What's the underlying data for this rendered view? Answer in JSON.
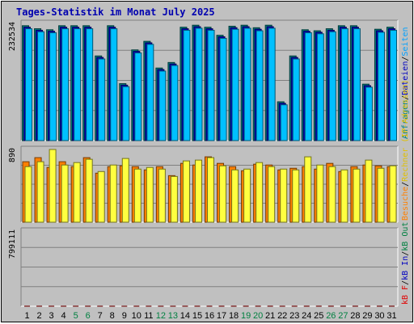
{
  "title": "Tages-Statistik im Monat July 2025",
  "chart_data": {
    "type": "bar",
    "title": "Tages-Statistik im Monat July 2025",
    "categories": [
      "1",
      "2",
      "3",
      "4",
      "5",
      "6",
      "7",
      "8",
      "9",
      "10",
      "11",
      "12",
      "13",
      "14",
      "15",
      "16",
      "17",
      "18",
      "19",
      "20",
      "21",
      "22",
      "23",
      "24",
      "25",
      "26",
      "27",
      "28",
      "29",
      "30",
      "31"
    ],
    "weekend_days": [
      "5",
      "6",
      "12",
      "13",
      "19",
      "20",
      "26",
      "27"
    ],
    "panels": [
      {
        "name": "hits",
        "ymax_label": "232534",
        "ymax": 232534,
        "legend": [
          {
            "text": "Anfragen",
            "color": "#008080"
          },
          {
            "text": "/",
            "color": "#000000"
          },
          {
            "text": "Dateien",
            "color": "#0000c0"
          },
          {
            "text": "/",
            "color": "#000000"
          },
          {
            "text": "Seiten",
            "color": "#00a0ff"
          }
        ],
        "series": [
          {
            "name": "Anfragen",
            "color": "#008080",
            "values": [
              228000,
              222000,
              220000,
              228000,
              228000,
              228000,
              168000,
              228000,
              113000,
              180000,
              197000,
              144000,
              155000,
              225000,
              229000,
              225000,
              209000,
              227000,
              229000,
              224000,
              229000,
              77000,
              168000,
              220000,
              218000,
              222000,
              228000,
              228000,
              112000,
              221000,
              225000
            ]
          },
          {
            "name": "Dateien",
            "color": "#0000c0",
            "values": [
              225000,
              219000,
              217000,
              225000,
              225000,
              225000,
              165000,
              225000,
              110000,
              177000,
              194000,
              141000,
              152000,
              222000,
              226000,
              222000,
              206000,
              224000,
              226000,
              221000,
              226000,
              74000,
              165000,
              217000,
              215000,
              219000,
              225000,
              225000,
              109000,
              218000,
              222000
            ]
          },
          {
            "name": "Seiten",
            "color": "#00c0ff",
            "values": [
              222000,
              216000,
              214000,
              222000,
              222000,
              222000,
              162000,
              222000,
              107000,
              174000,
              191000,
              138000,
              149000,
              219000,
              223000,
              219000,
              203000,
              221000,
              223000,
              218000,
              223000,
              71000,
              162000,
              214000,
              212000,
              216000,
              222000,
              222000,
              106000,
              215000,
              219000
            ]
          }
        ]
      },
      {
        "name": "visits",
        "ymax_label": "890",
        "ymax": 890,
        "legend": [
          {
            "text": "Besuche",
            "color": "#ff8000"
          },
          {
            "text": "/",
            "color": "#000000"
          },
          {
            "text": "Rechner (IP-Adressen)",
            "color": "#e0c000"
          }
        ],
        "series": [
          {
            "name": "Besuche",
            "color": "#ff8000",
            "values": [
              740,
              790,
              670,
              740,
              680,
              790,
              600,
              680,
              690,
              680,
              640,
              680,
              570,
              720,
              700,
              800,
              720,
              680,
              630,
              710,
              700,
              640,
              660,
              680,
              650,
              720,
              620,
              680,
              700,
              690,
              680
            ]
          },
          {
            "name": "Rechner (IP-Adressen)",
            "color": "#ffff40",
            "values": [
              680,
              740,
              890,
              700,
              730,
              770,
              620,
              700,
              780,
              650,
              670,
              650,
              560,
              750,
              760,
              790,
              690,
              640,
              650,
              730,
              680,
              650,
              640,
              800,
              700,
              680,
              640,
              650,
              760,
              660,
              690
            ]
          }
        ]
      },
      {
        "name": "traffic",
        "ymax_label": "799111",
        "ymax": 799111,
        "legend": [
          {
            "text": "kB F",
            "color": "#e00000"
          },
          {
            "text": "/",
            "color": "#000000"
          },
          {
            "text": "kB In",
            "color": "#0000c0"
          },
          {
            "text": "/",
            "color": "#000000"
          },
          {
            "text": "kB Out",
            "color": "#008040"
          }
        ],
        "series": [
          {
            "name": "kB F",
            "color": "#ff0000",
            "values": [
              620,
              600,
              620,
              630,
              630,
              630,
              460,
              630,
              250,
              500,
              530,
              330,
              360,
              600,
              630,
              720,
              750,
              790,
              790,
              780,
              790,
              360,
              660,
              750,
              740,
              780,
              790,
              785,
              450,
              770,
              785
            ]
          }
        ]
      }
    ]
  }
}
